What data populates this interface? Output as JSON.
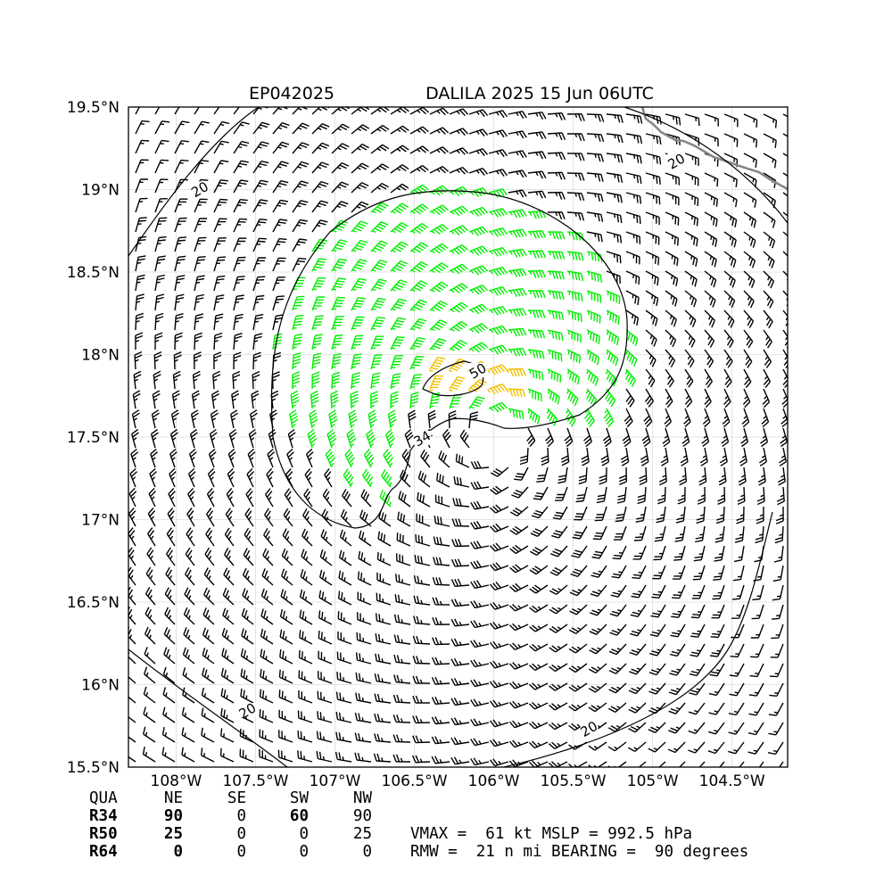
{
  "chart_data": {
    "type": "wind_barb_map",
    "storm_id": "EP042025",
    "title": "DALILA 2025 15 Jun 06UTC",
    "center": {
      "lon": -106.0,
      "lat": 17.5
    },
    "xlim": [
      -108.3,
      -104.15
    ],
    "ylim": [
      15.5,
      19.5
    ],
    "x_ticks": [
      {
        "value": -108.0,
        "label": "108°W"
      },
      {
        "value": -107.5,
        "label": "107.5°W"
      },
      {
        "value": -107.0,
        "label": "107°W"
      },
      {
        "value": -106.5,
        "label": "106.5°W"
      },
      {
        "value": -106.0,
        "label": "106°W"
      },
      {
        "value": -105.5,
        "label": "105.5°W"
      },
      {
        "value": -105.0,
        "label": "105°W"
      },
      {
        "value": -104.5,
        "label": "104.5°W"
      }
    ],
    "y_ticks": [
      {
        "value": 15.5,
        "label": "15.5°N"
      },
      {
        "value": 16.0,
        "label": "16°N"
      },
      {
        "value": 16.5,
        "label": "16.5°N"
      },
      {
        "value": 17.0,
        "label": "17°N"
      },
      {
        "value": 17.5,
        "label": "17.5°N"
      },
      {
        "value": 18.0,
        "label": "18°N"
      },
      {
        "value": 18.5,
        "label": "18.5°N"
      },
      {
        "value": 19.0,
        "label": "19°N"
      },
      {
        "value": 19.5,
        "label": "19.5°N"
      }
    ],
    "grid": true,
    "wind_speed_colors": {
      "below_34": "#000000",
      "34_to_50": "#00ee00",
      "50_to_64": "#f0c000",
      "above_64": "#ff6000"
    },
    "contour_levels": [
      {
        "level": "20",
        "label_positions": [
          [
            -107.85,
            19.0
          ],
          [
            -104.85,
            19.17
          ],
          [
            -107.55,
            15.84
          ],
          [
            -105.4,
            15.73
          ]
        ]
      },
      {
        "level": "34",
        "label_positions": [
          [
            -106.45,
            17.49
          ]
        ]
      },
      {
        "level": "50",
        "label_positions": [
          [
            -106.1,
            17.9
          ]
        ]
      }
    ],
    "radii_table": {
      "headers": [
        "QUA",
        "NE",
        "SE",
        "SW",
        "NW"
      ],
      "rows": [
        {
          "label": "R34",
          "values": [
            "90",
            "0",
            "60",
            "90"
          ]
        },
        {
          "label": "R50",
          "values": [
            "25",
            "0",
            "0",
            "25"
          ]
        },
        {
          "label": "R64",
          "values": [
            "0",
            "0",
            "0",
            "0"
          ]
        }
      ]
    },
    "summary_lines": [
      "VMAX =  61 kt MSLP = 992.5 hPa",
      "RMW =  21 n mi BEARING =  90 degrees"
    ]
  }
}
